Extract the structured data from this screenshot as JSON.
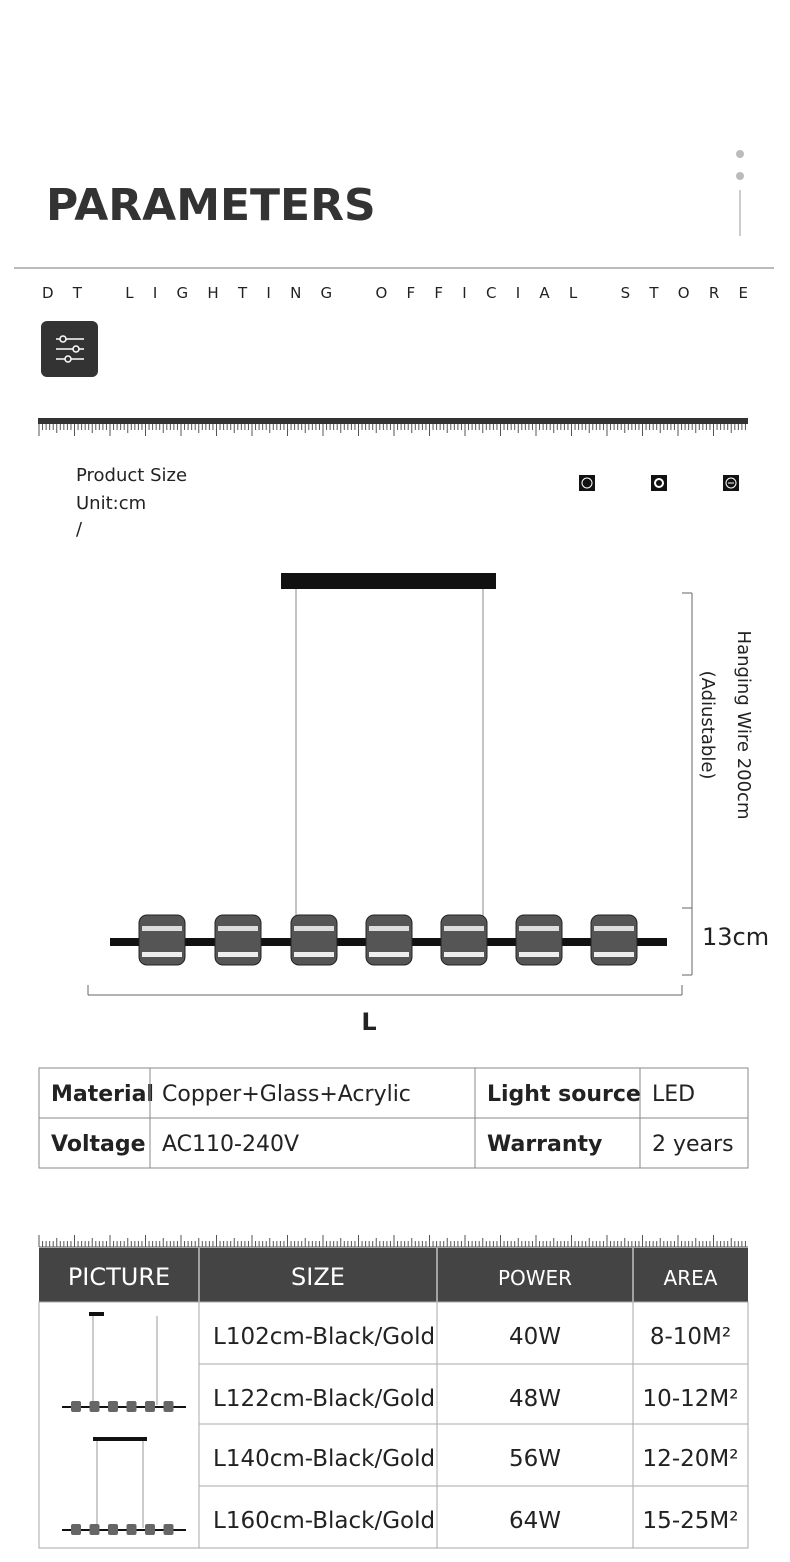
{
  "header": {
    "title": "PARAMETERS",
    "store": "DT LIGHTING OFFICIAL STORE"
  },
  "product_size": {
    "title": "Product Size",
    "unit": "Unit:cm",
    "separator": "/"
  },
  "dimensions": {
    "hanging_wire": "Hanging Wire 200cm",
    "adjustable": "(Adiustable)",
    "height": "13cm",
    "length": "L"
  },
  "specs": {
    "rows": [
      [
        "Material",
        "Copper+Glass+Acrylic",
        "Light source",
        "LED"
      ],
      [
        "Voltage",
        "AC110-240V",
        "Warranty",
        "2 years"
      ]
    ]
  },
  "sizes": {
    "headers": [
      "PICTURE",
      "SIZE",
      "POWER",
      "AREA"
    ],
    "rows": [
      [
        "L102cm-Black/Gold",
        "40W",
        "8-10M²"
      ],
      [
        "L122cm-Black/Gold",
        "48W",
        "10-12M²"
      ],
      [
        "L140cm-Black/Gold",
        "56W",
        "12-20M²"
      ],
      [
        "L160cm-Black/Gold",
        "64W",
        "15-25M²"
      ]
    ]
  }
}
